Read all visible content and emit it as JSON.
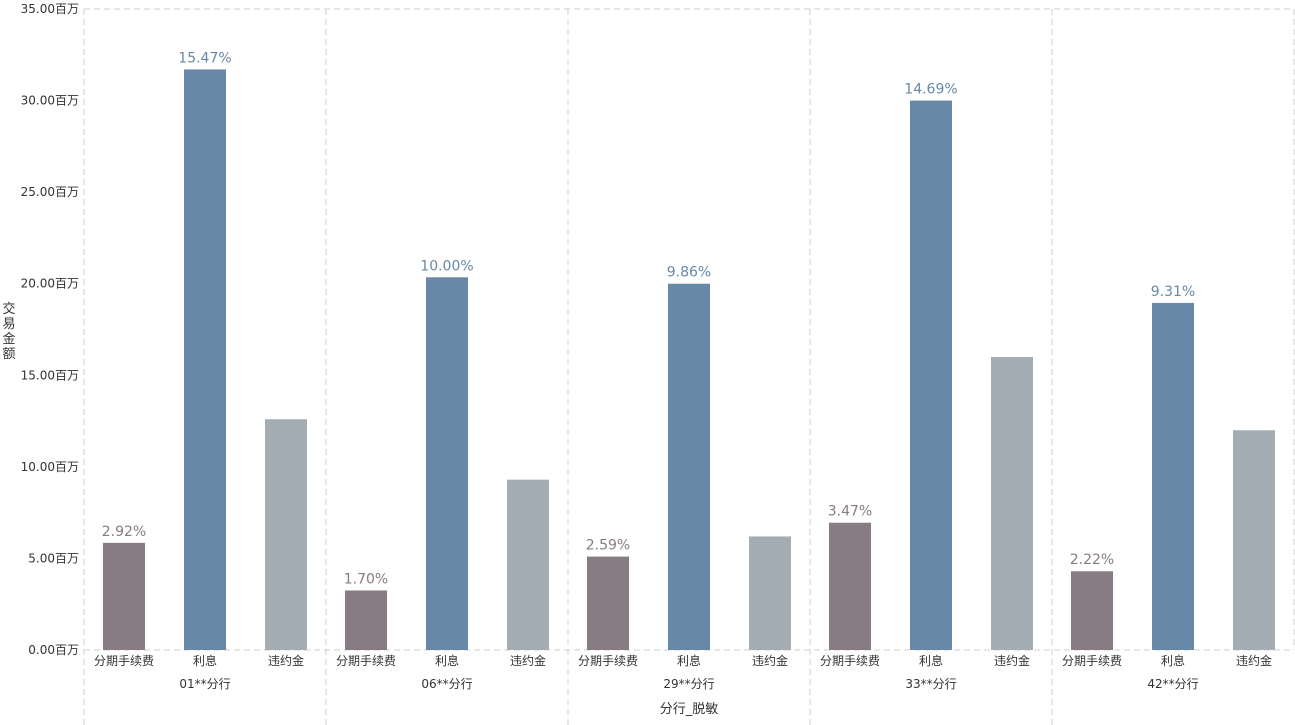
{
  "chart_data": {
    "type": "bar",
    "ylabel": "交易金额",
    "xlabel": "分行_脱敏",
    "ylim": [
      0,
      35
    ],
    "yticks": [
      {
        "value": 0,
        "label": "0.00百万"
      },
      {
        "value": 5,
        "label": "5.00百万"
      },
      {
        "value": 10,
        "label": "10.00百万"
      },
      {
        "value": 15,
        "label": "15.00百万"
      },
      {
        "value": 20,
        "label": "20.00百万"
      },
      {
        "value": 25,
        "label": "25.00百万"
      },
      {
        "value": 30,
        "label": "30.00百万"
      },
      {
        "value": 35,
        "label": "35.00百万"
      }
    ],
    "categories": [
      "分期手续费",
      "利息",
      "违约金"
    ],
    "colors": {
      "分期手续费": "#887b83",
      "利息": "#6789a7",
      "违约金": "#a3adb3"
    },
    "groups": [
      {
        "name": "01**分行",
        "values": [
          5.85,
          31.7,
          12.6
        ],
        "labels": [
          "2.92%",
          "15.47%",
          ""
        ]
      },
      {
        "name": "06**分行",
        "values": [
          3.25,
          20.35,
          9.3
        ],
        "labels": [
          "1.70%",
          "10.00%",
          ""
        ]
      },
      {
        "name": "29**分行",
        "values": [
          5.1,
          20.0,
          6.2
        ],
        "labels": [
          "2.59%",
          "9.86%",
          ""
        ]
      },
      {
        "name": "33**分行",
        "values": [
          6.95,
          30.0,
          16.0
        ],
        "labels": [
          "3.47%",
          "14.69%",
          ""
        ]
      },
      {
        "name": "42**分行",
        "values": [
          4.3,
          18.95,
          12.0
        ],
        "labels": [
          "2.22%",
          "9.31%",
          ""
        ]
      }
    ],
    "grid": true
  }
}
